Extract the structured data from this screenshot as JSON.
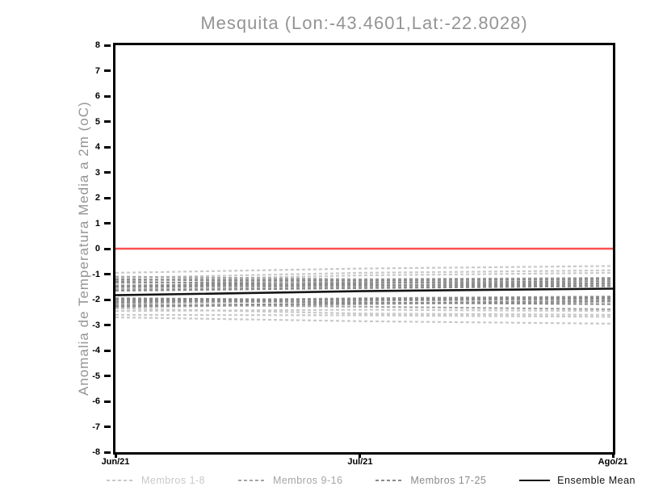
{
  "header": {
    "title": "Mesquita (Lon:-43.4601,Lat:-22.8028)"
  },
  "chart_data": {
    "type": "line",
    "title": "Mesquita (Lon:-43.4601,Lat:-22.8028)",
    "ylabel": "Anomalia de Temperatura Media a 2m (oC)",
    "xlabel": "",
    "ylim": [
      -8,
      8
    ],
    "ytick_labels": [
      "8",
      "7",
      "6",
      "5",
      "4",
      "3",
      "2",
      "1",
      "0",
      "-1",
      "-2",
      "-3",
      "-4",
      "-5",
      "-6",
      "-7",
      "-8"
    ],
    "x_positions": [
      0,
      0.4918,
      1
    ],
    "xtick_labels": [
      "Jun/21",
      "Jul/21",
      "Ago/21"
    ],
    "grid": "off",
    "zero_line": {
      "value": 0,
      "color": "#fa5050"
    },
    "groups": {
      "members_1_8": "#c9c9c9",
      "members_9_16": "#a5a5a5",
      "members_17_25": "#8a8a8a",
      "ensemble_mean": "#141414"
    },
    "series": [
      {
        "name": "Membro 1",
        "group": "members_1_8",
        "values": [
          -0.95,
          -0.78,
          -0.68
        ]
      },
      {
        "name": "Membro 2",
        "group": "members_1_8",
        "values": [
          -1.25,
          -1.05,
          -0.95
        ]
      },
      {
        "name": "Membro 3",
        "group": "members_1_8",
        "values": [
          -2.6,
          -2.62,
          -2.68
        ]
      },
      {
        "name": "Membro 4",
        "group": "members_1_8",
        "values": [
          -2.7,
          -2.85,
          -2.95
        ]
      },
      {
        "name": "Membro 5",
        "group": "members_1_8",
        "values": [
          -1.55,
          -1.35,
          -1.25
        ]
      },
      {
        "name": "Membro 6",
        "group": "members_1_8",
        "values": [
          -2.35,
          -2.55,
          -2.6
        ]
      },
      {
        "name": "Membro 7",
        "group": "members_1_8",
        "values": [
          -1.15,
          -0.95,
          -0.85
        ]
      },
      {
        "name": "Membro 8",
        "group": "members_1_8",
        "values": [
          -2.45,
          -2.4,
          -2.45
        ]
      },
      {
        "name": "Membro 9",
        "group": "members_9_16",
        "values": [
          -1.1,
          -1.2,
          -1.15
        ]
      },
      {
        "name": "Membro 10",
        "group": "members_9_16",
        "values": [
          -1.35,
          -1.28,
          -1.2
        ]
      },
      {
        "name": "Membro 11",
        "group": "members_9_16",
        "values": [
          -2.2,
          -2.28,
          -2.38
        ]
      },
      {
        "name": "Membro 12",
        "group": "members_9_16",
        "values": [
          -2.05,
          -1.95,
          -1.88
        ]
      },
      {
        "name": "Membro 13",
        "group": "members_9_16",
        "values": [
          -1.6,
          -1.5,
          -1.4
        ]
      },
      {
        "name": "Membro 14",
        "group": "members_9_16",
        "values": [
          -2.3,
          -2.18,
          -2.08
        ]
      },
      {
        "name": "Membro 15",
        "group": "members_9_16",
        "values": [
          -1.2,
          -1.32,
          -1.38
        ]
      },
      {
        "name": "Membro 16",
        "group": "members_9_16",
        "values": [
          -2.15,
          -2.05,
          -1.98
        ]
      },
      {
        "name": "Membro 17",
        "group": "members_17_25",
        "values": [
          -1.22,
          -1.24,
          -1.18
        ]
      },
      {
        "name": "Membro 18",
        "group": "members_17_25",
        "values": [
          -1.45,
          -1.35,
          -1.28
        ]
      },
      {
        "name": "Membro 19",
        "group": "members_17_25",
        "values": [
          -2.25,
          -2.15,
          -2.05
        ]
      },
      {
        "name": "Membro 20",
        "group": "members_17_25",
        "values": [
          -1.95,
          -2.02,
          -1.96
        ]
      },
      {
        "name": "Membro 21",
        "group": "members_17_25",
        "values": [
          -1.3,
          -1.42,
          -1.47
        ]
      },
      {
        "name": "Membro 22",
        "group": "members_17_25",
        "values": [
          -2.1,
          -1.97,
          -1.9
        ]
      },
      {
        "name": "Membro 23",
        "group": "members_17_25",
        "values": [
          -1.5,
          -1.44,
          -1.36
        ]
      },
      {
        "name": "Membro 24",
        "group": "members_17_25",
        "values": [
          -2.0,
          -2.12,
          -2.18
        ]
      },
      {
        "name": "Membro 25",
        "group": "members_17_25",
        "values": [
          -1.65,
          -1.55,
          -1.47
        ]
      },
      {
        "name": "Ensemble Mean",
        "group": "ensemble_mean",
        "values": [
          -1.83,
          -1.67,
          -1.57
        ]
      }
    ],
    "legend": [
      {
        "label": "Membros 1-8",
        "style": "dashed",
        "color": "#c9c9c9"
      },
      {
        "label": "Membros 9-16",
        "style": "dashed",
        "color": "#a5a5a5"
      },
      {
        "label": "Membros 17-25",
        "style": "dashed",
        "color": "#8a8a8a"
      },
      {
        "label": "Ensemble Mean",
        "style": "solid",
        "color": "#141414"
      }
    ],
    "legend_position": "bottom"
  }
}
